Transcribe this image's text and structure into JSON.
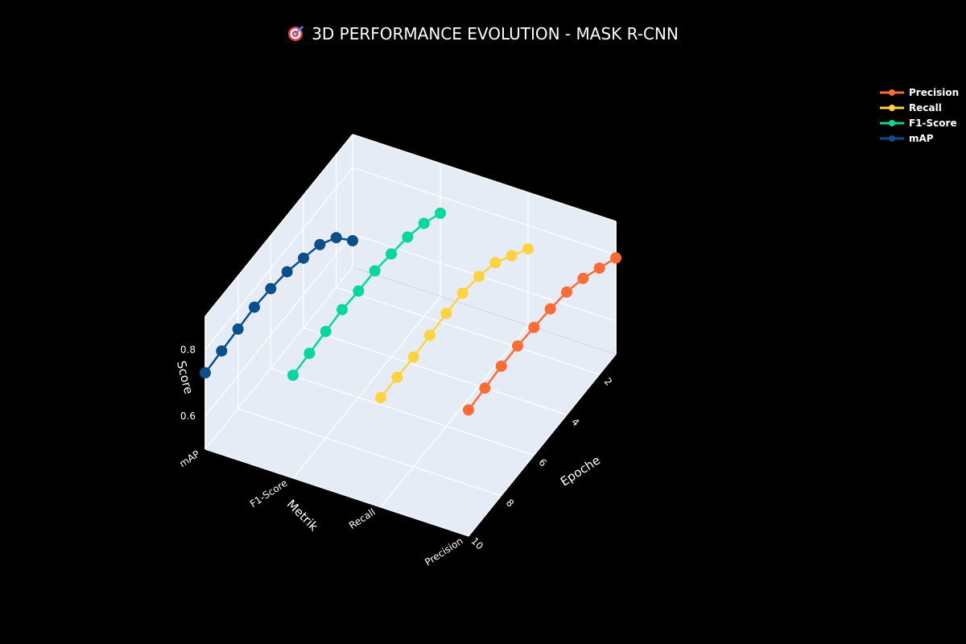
{
  "title": "🎯 3D PERFORMANCE EVOLUTION - MASK R-CNN",
  "title_text": "3D PERFORMANCE EVOLUTION - MASK R-CNN",
  "title_icon": "target-icon",
  "colors": {
    "background": "#000000",
    "scene_background": "#e5ecf6",
    "grid": "#ffffff",
    "text": "#ffffff"
  },
  "legend": {
    "items": [
      {
        "label": "Precision",
        "color": "#ff6b35"
      },
      {
        "label": "Recall",
        "color": "#ffd23f"
      },
      {
        "label": "F1-Score",
        "color": "#06d6a0"
      },
      {
        "label": "mAP",
        "color": "#0b4f8a"
      }
    ]
  },
  "axes": {
    "x_title": "Epoche",
    "y_title": "Metrik",
    "z_title": "Score",
    "x_ticks": [
      "2",
      "4",
      "6",
      "8",
      "10"
    ],
    "y_ticks": [
      "Precision",
      "Recall",
      "F1-Score",
      "mAP"
    ],
    "z_ticks": [
      "0.6",
      "0.8"
    ]
  },
  "chart_data": {
    "type": "scatter3d-lines",
    "title": "🎯 3D PERFORMANCE EVOLUTION - MASK R-CNN",
    "xlabel": "Epoche",
    "ylabel": "Metrik",
    "zlabel": "Score",
    "x": [
      1,
      2,
      3,
      4,
      5,
      6,
      7,
      8,
      9,
      10
    ],
    "xlim": [
      1,
      10
    ],
    "categories_y": [
      "Precision",
      "Recall",
      "F1-Score",
      "mAP"
    ],
    "zlim": [
      0.5,
      0.9
    ],
    "legend_position": "top-right",
    "grid": true,
    "series": [
      {
        "name": "Precision",
        "color": "#ff6b35",
        "values": [
          0.79,
          0.82,
          0.85,
          0.87,
          0.88,
          0.885,
          0.89,
          0.89,
          0.885,
          0.88
        ]
      },
      {
        "name": "Recall",
        "color": "#ffd23f",
        "values": [
          0.73,
          0.77,
          0.81,
          0.83,
          0.84,
          0.84,
          0.835,
          0.83,
          0.83,
          0.83
        ]
      },
      {
        "name": "F1-Score",
        "color": "#06d6a0",
        "values": [
          0.75,
          0.78,
          0.8,
          0.81,
          0.82,
          0.82,
          0.825,
          0.82,
          0.815,
          0.81
        ]
      },
      {
        "name": "mAP",
        "color": "#0b4f8a",
        "values": [
          0.58,
          0.65,
          0.69,
          0.71,
          0.73,
          0.74,
          0.745,
          0.74,
          0.735,
          0.73
        ]
      }
    ]
  }
}
